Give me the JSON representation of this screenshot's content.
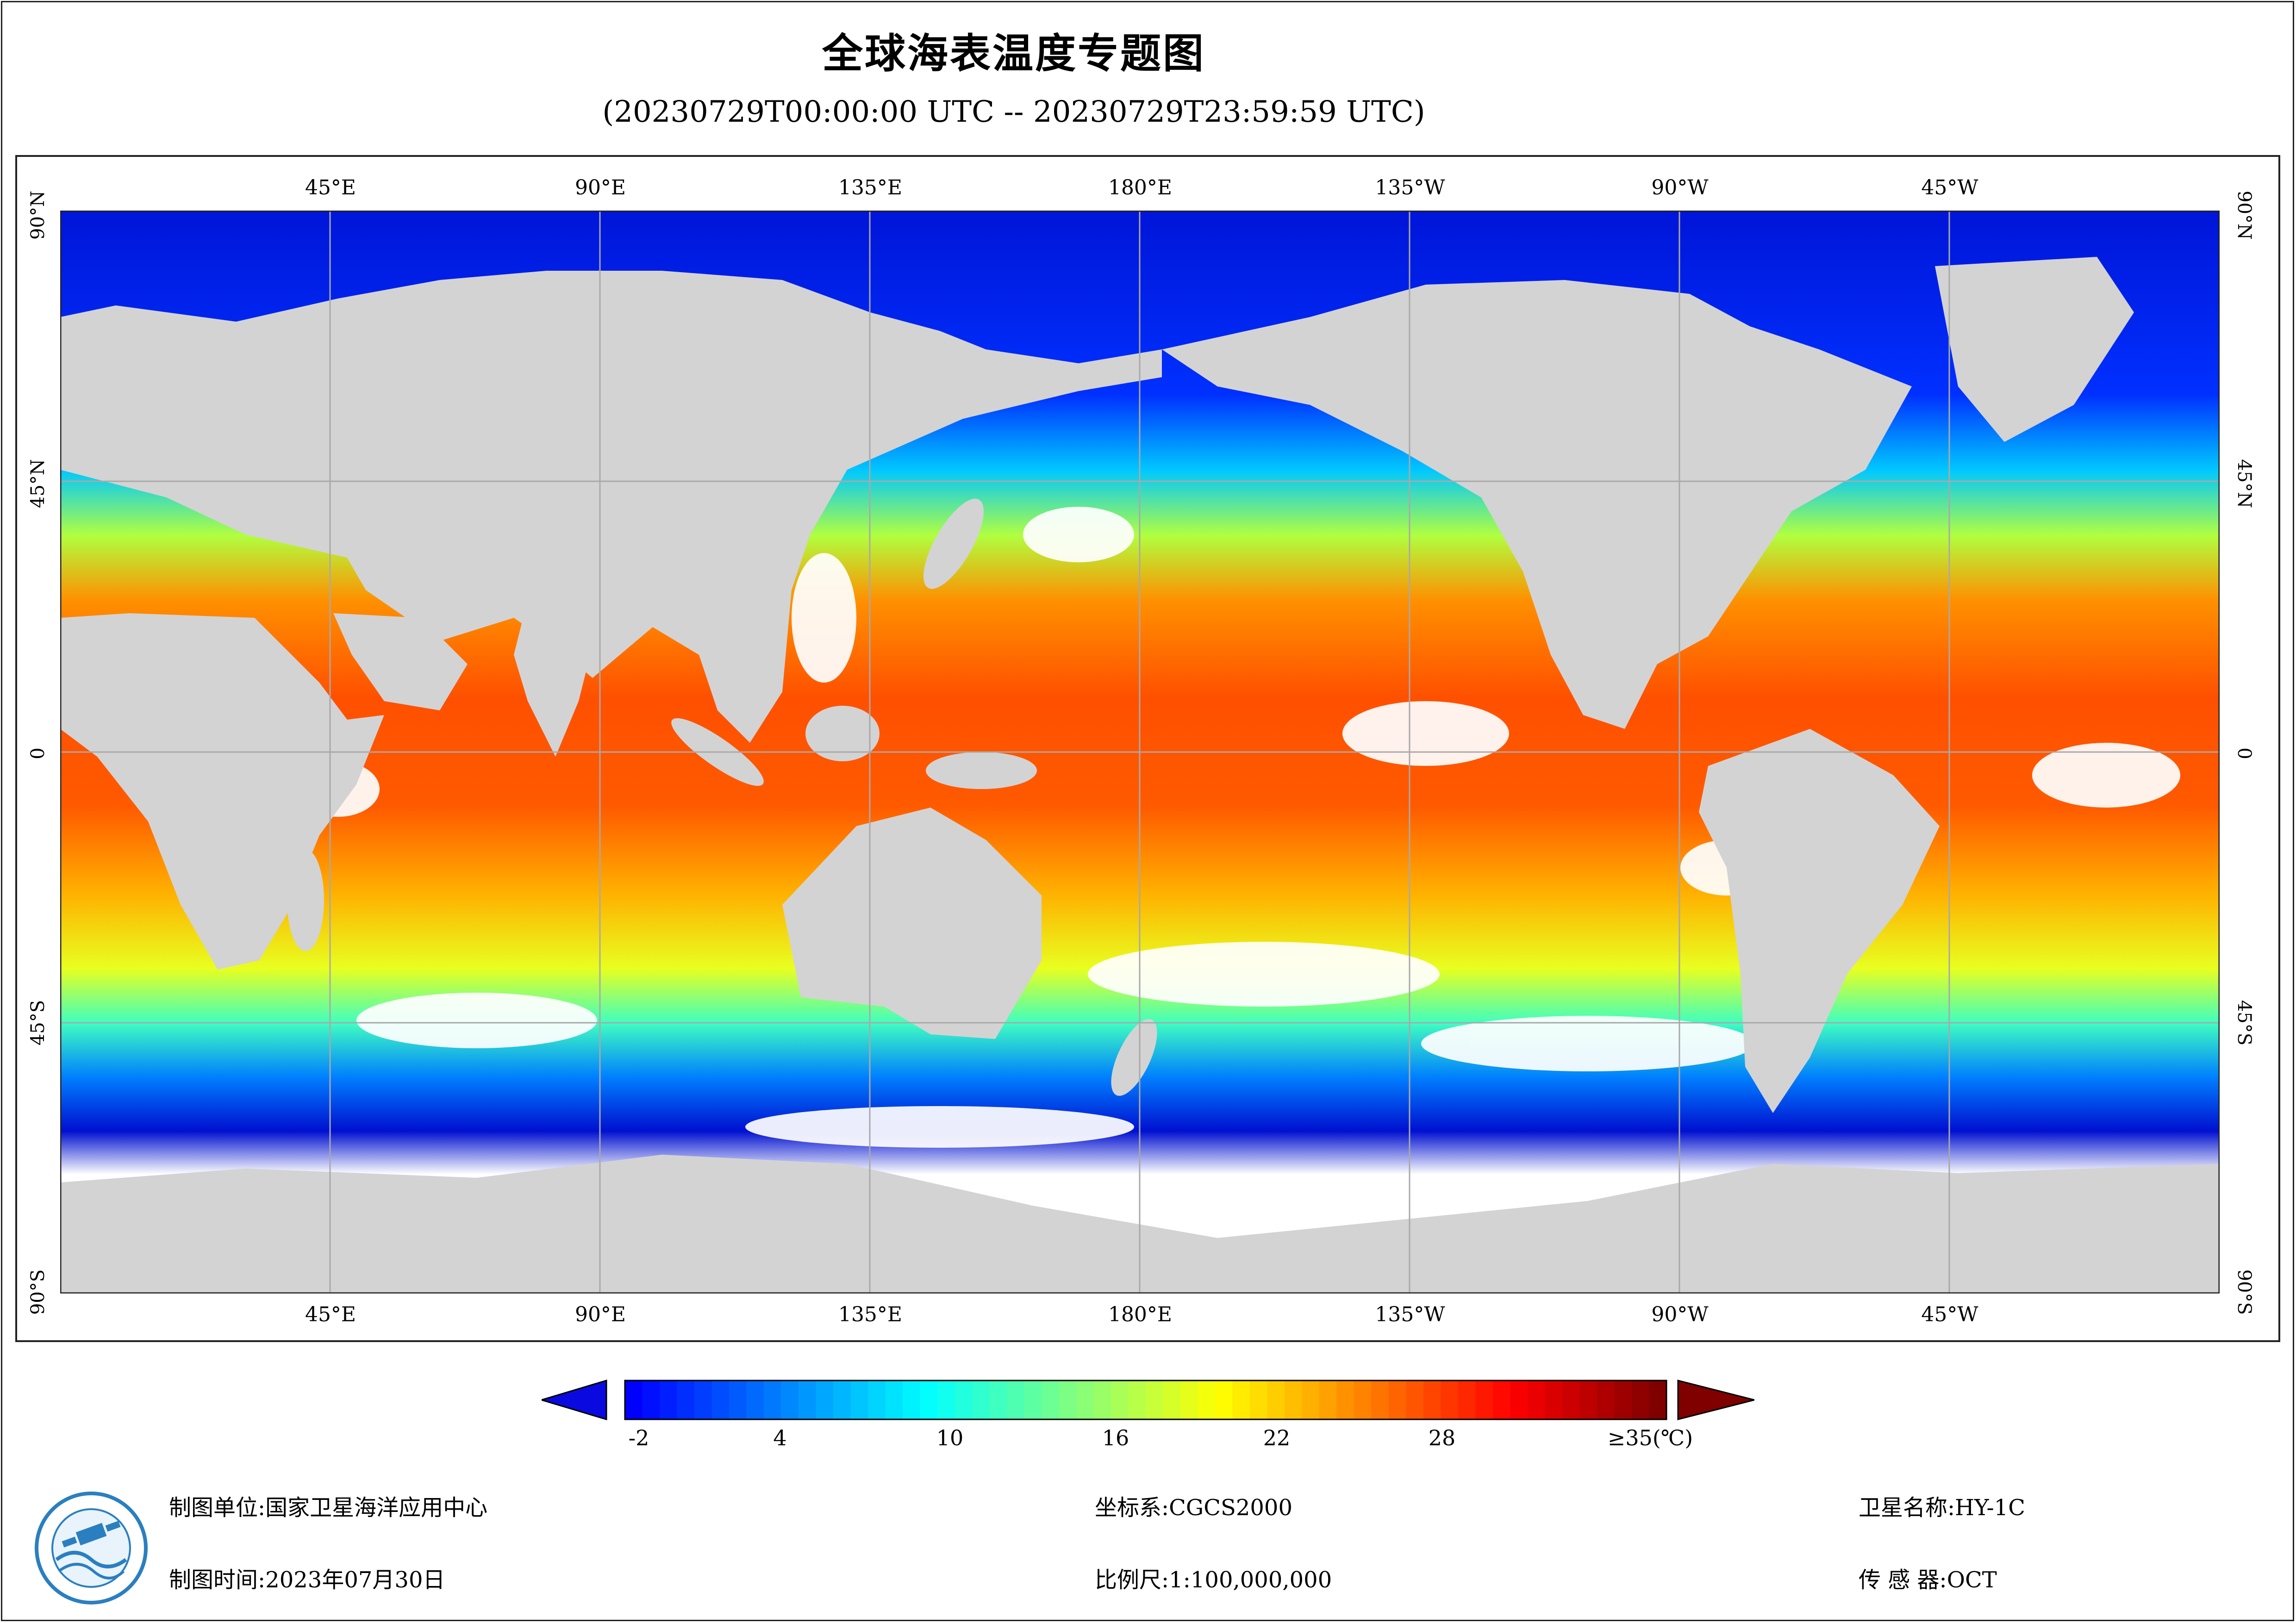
{
  "header": {
    "title": "全球海表温度专题图",
    "subtitle": "(20230729T00:00:00 UTC -- 20230729T23:59:59 UTC)"
  },
  "map": {
    "longitude_labels": [
      "45°E",
      "90°E",
      "135°E",
      "180°E",
      "135°W",
      "90°W",
      "45°W"
    ],
    "latitude_labels": [
      "90°N",
      "45°N",
      "0",
      "45°S",
      "90°S"
    ],
    "land_color": "#d3d3d3",
    "grid_color": "#a9a9a9",
    "no_data_color": "#ffffff"
  },
  "colorbar": {
    "labels": [
      "-2",
      "4",
      "10",
      "16",
      "22",
      "28",
      "≥35(℃)"
    ],
    "under_color": "#0a0ae0",
    "over_color": "#800000",
    "colors": [
      "#0000ff",
      "#0040ff",
      "#0080ff",
      "#00c0ff",
      "#00ffff",
      "#40ffc0",
      "#80ff80",
      "#c0ff40",
      "#ffff00",
      "#ffc000",
      "#ff8000",
      "#ff4000",
      "#ff0000",
      "#c00000",
      "#800000"
    ]
  },
  "footer": {
    "org_label": "制图单位:国家卫星海洋应用中心",
    "time_label": "制图时间:2023年07月30日",
    "crs_label": "坐标系:CGCS2000",
    "scale_label": "比例尺:1:100,000,000",
    "satellite_label": "卫星名称:HY-1C",
    "sensor_label": "传 感 器:OCT"
  }
}
